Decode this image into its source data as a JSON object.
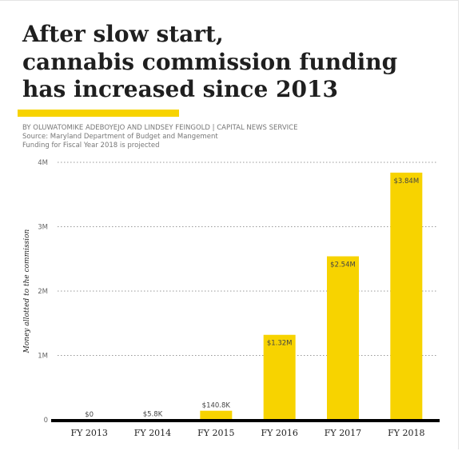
{
  "header": {
    "title_lines": [
      "After slow start,",
      "cannabis commission funding",
      "has increased since 2013"
    ],
    "byline": "BY OLUWATOMIKE ADEBOYEJO AND LINDSEY FEINGOLD | CAPITAL NEWS SERVICE",
    "source": "Source: Maryland Department of Budget and Mangement",
    "note": "Funding for Fiscal Year 2018 is projected"
  },
  "colors": {
    "accent": "#f7d300",
    "bar": "#f7d300",
    "baseline": "#000000",
    "grid": "#999999"
  },
  "chart_data": {
    "type": "bar",
    "categories": [
      "FY 2013",
      "FY 2014",
      "FY 2015",
      "FY 2016",
      "FY 2017",
      "FY 2018"
    ],
    "values": [
      0,
      5800,
      140800,
      1320000,
      2540000,
      3840000
    ],
    "data_labels": [
      "$0",
      "$5.8K",
      "$140.8K",
      "$1.32M",
      "$2.54M",
      "$3.84M"
    ],
    "ylabel": "Money allotted to the commission",
    "xlabel": "",
    "ylim": [
      0,
      4000000
    ],
    "yticks": [
      0,
      1000000,
      2000000,
      3000000,
      4000000
    ],
    "ytick_labels": [
      "0",
      "1M",
      "2M",
      "3M",
      "4M"
    ],
    "grid": true,
    "legend": "none"
  }
}
